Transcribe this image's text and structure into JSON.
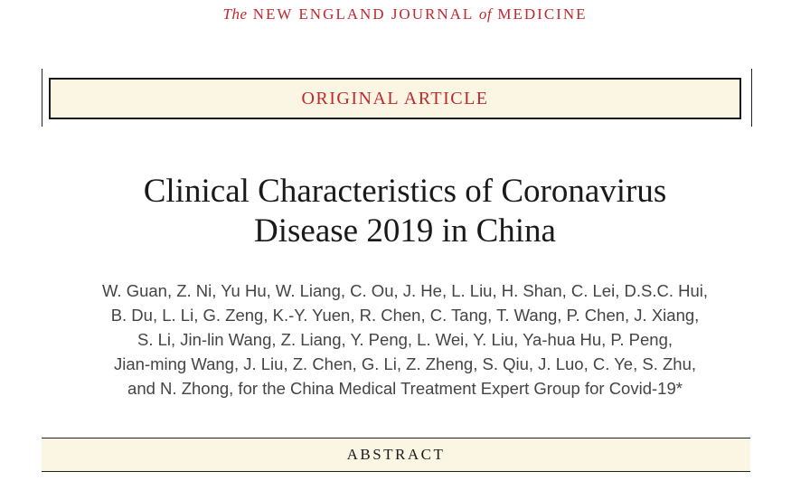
{
  "journal": {
    "prefix": "The",
    "part1": " NEW ENGLAND JOURNAL ",
    "of": "of",
    "part2": " MEDICINE"
  },
  "section_label": "ORIGINAL ARTICLE",
  "title_lines": [
    "Clinical Characteristics of Coronavirus",
    "Disease 2019 in China"
  ],
  "author_lines": [
    "W. Guan, Z. Ni, Yu Hu, W. Liang, C. Ou, J. He, L. Liu, H. Shan, C. Lei, D.S.C. Hui,",
    "B. Du, L. Li, G. Zeng, K.-Y. Yuen, R. Chen, C. Tang, T. Wang, P. Chen, J. Xiang,",
    "S. Li, Jin-lin Wang, Z. Liang, Y. Peng, L. Wei, Y. Liu, Ya-hua Hu, P. Peng,",
    "Jian-ming Wang, J. Liu, Z. Chen, G. Li, Z. Zheng, S. Qiu, J. Luo, C. Ye, S. Zhu,",
    "and N. Zhong, for the China Medical Treatment Expert Group for Covid-19*"
  ],
  "abstract_label": "ABSTRACT",
  "colors": {
    "accent_red": "#c0282d",
    "box_fill": "#fbf6e4",
    "text_dark": "#1a1a1a",
    "text_gray": "#444444"
  }
}
